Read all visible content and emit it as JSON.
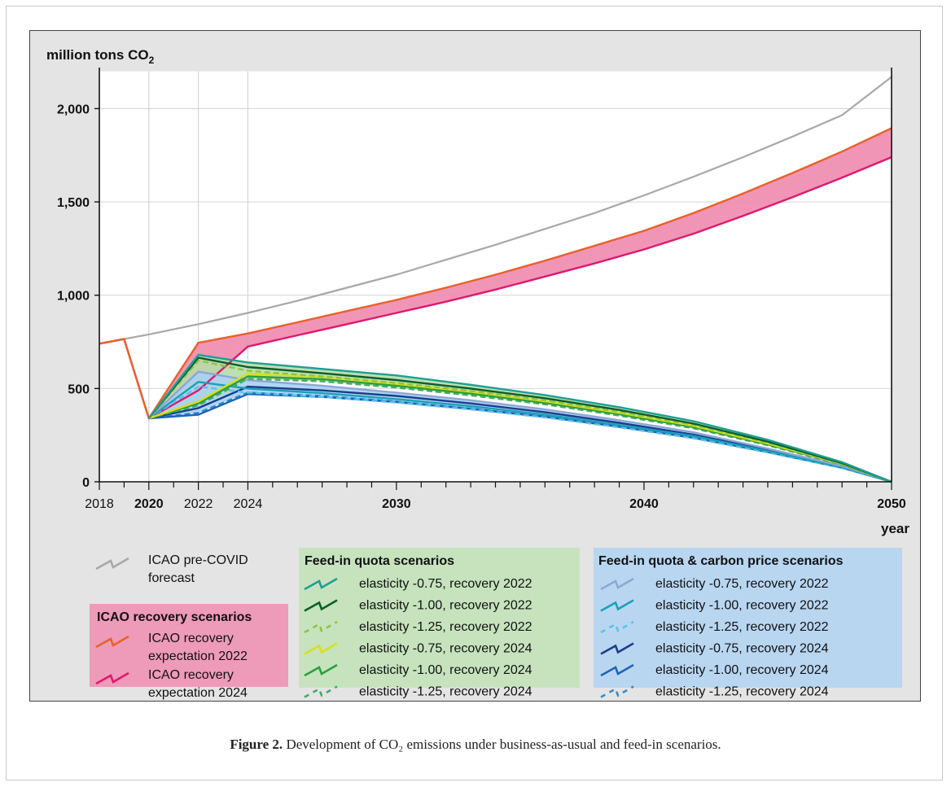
{
  "caption": {
    "label": "Figure 2.",
    "text": "Development of CO₂ emissions under business-as-usual and feed-in scenarios."
  },
  "chart_data": {
    "type": "line",
    "ylabel": "million tons CO",
    "ylabel_sub": "2",
    "xlabel": "year",
    "xlim": [
      2018,
      2050
    ],
    "ylim": [
      0,
      2200
    ],
    "grid": true,
    "y_ticks": [
      0,
      500,
      1000,
      1500,
      2000
    ],
    "y_tick_labels": [
      "0",
      "500",
      "1,000",
      "1,500",
      "2,000"
    ],
    "x_ticks": [
      2018,
      2020,
      2022,
      2024,
      2030,
      2040,
      2050
    ],
    "x_tick_labels": [
      "2018",
      "2020",
      "2022",
      "2024",
      "2030",
      "2040",
      "2050"
    ],
    "x_tick_bold": [
      2020,
      2030,
      2040,
      2050
    ],
    "series": [
      {
        "key": "precovid",
        "name": "ICAO pre-COVID forecast",
        "color": "#a8a8a8",
        "x": [
          2018,
          2019,
          2020,
          2022,
          2024,
          2026,
          2028,
          2030,
          2032,
          2034,
          2036,
          2038,
          2040,
          2042,
          2044,
          2046,
          2048,
          2050
        ],
        "y": [
          740,
          765,
          790,
          845,
          905,
          970,
          1040,
          1110,
          1190,
          1270,
          1355,
          1440,
          1535,
          1635,
          1740,
          1850,
          1965,
          2170
        ]
      },
      {
        "key": "icao2022",
        "name": "ICAO recovery expectation 2022",
        "color": "#e8612a",
        "x": [
          2018,
          2019,
          2020,
          2022,
          2024,
          2026,
          2028,
          2030,
          2032,
          2034,
          2036,
          2038,
          2040,
          2042,
          2044,
          2046,
          2048,
          2050
        ],
        "y": [
          740,
          765,
          340,
          745,
          795,
          855,
          915,
          975,
          1040,
          1110,
          1185,
          1265,
          1345,
          1440,
          1545,
          1655,
          1770,
          1895
        ]
      },
      {
        "key": "icao2024",
        "name": "ICAO recovery expectation 2024",
        "color": "#e0186f",
        "x": [
          2018,
          2019,
          2020,
          2022,
          2024,
          2026,
          2028,
          2030,
          2032,
          2034,
          2036,
          2038,
          2040,
          2042,
          2044,
          2046,
          2048,
          2050
        ],
        "y": [
          740,
          765,
          340,
          490,
          725,
          785,
          845,
          905,
          965,
          1030,
          1100,
          1170,
          1245,
          1330,
          1425,
          1525,
          1630,
          1740
        ]
      },
      {
        "key": "fq_075_22",
        "name": "elasticity -0.75, recovery 2022",
        "color": "#1f9e93",
        "x": [
          2020,
          2022,
          2024,
          2027,
          2030,
          2033,
          2036,
          2039,
          2042,
          2045,
          2048,
          2050
        ],
        "y": [
          340,
          680,
          640,
          605,
          570,
          520,
          465,
          400,
          325,
          225,
          105,
          0
        ]
      },
      {
        "key": "fq_100_22",
        "name": "elasticity -1.00, recovery 2022",
        "color": "#0b5e2a",
        "x": [
          2020,
          2022,
          2024,
          2027,
          2030,
          2033,
          2036,
          2039,
          2042,
          2045,
          2048,
          2050
        ],
        "y": [
          340,
          665,
          615,
          582,
          545,
          500,
          448,
          385,
          312,
          215,
          100,
          0
        ]
      },
      {
        "key": "fq_125_22",
        "name": "elasticity -1.25, recovery 2022",
        "color": "#8cc540",
        "dash": true,
        "x": [
          2020,
          2022,
          2024,
          2027,
          2030,
          2033,
          2036,
          2039,
          2042,
          2045,
          2048,
          2050
        ],
        "y": [
          340,
          650,
          595,
          565,
          530,
          487,
          437,
          375,
          305,
          210,
          98,
          0
        ]
      },
      {
        "key": "fq_075_24",
        "name": "elasticity -0.75, recovery 2024",
        "color": "#d9de1f",
        "x": [
          2020,
          2022,
          2024,
          2027,
          2030,
          2033,
          2036,
          2039,
          2042,
          2045,
          2048,
          2050
        ],
        "y": [
          340,
          430,
          580,
          562,
          525,
          483,
          432,
          370,
          300,
          205,
          96,
          0
        ]
      },
      {
        "key": "fq_100_24",
        "name": "elasticity -1.00, recovery 2024",
        "color": "#2e9e3c",
        "x": [
          2020,
          2022,
          2024,
          2027,
          2030,
          2033,
          2036,
          2039,
          2042,
          2045,
          2048,
          2050
        ],
        "y": [
          340,
          420,
          565,
          550,
          515,
          473,
          423,
          362,
          293,
          200,
          94,
          0
        ]
      },
      {
        "key": "fq_125_24",
        "name": "elasticity -1.25, recovery 2024",
        "color": "#3fae62",
        "dash": true,
        "x": [
          2020,
          2022,
          2024,
          2027,
          2030,
          2033,
          2036,
          2039,
          2042,
          2045,
          2048,
          2050
        ],
        "y": [
          340,
          410,
          552,
          538,
          505,
          463,
          415,
          355,
          287,
          196,
          92,
          0
        ]
      },
      {
        "key": "cp_075_22",
        "name": "elasticity -0.75, recovery 2022",
        "color": "#8ea6d6",
        "x": [
          2020,
          2022,
          2024,
          2027,
          2030,
          2033,
          2036,
          2039,
          2042,
          2045,
          2048,
          2050
        ],
        "y": [
          340,
          590,
          545,
          515,
          478,
          437,
          388,
          330,
          265,
          178,
          84,
          0
        ]
      },
      {
        "key": "cp_100_22",
        "name": "elasticity -1.00, recovery 2022",
        "color": "#1aa0b8",
        "x": [
          2020,
          2022,
          2024,
          2027,
          2030,
          2033,
          2036,
          2039,
          2042,
          2045,
          2048,
          2050
        ],
        "y": [
          340,
          535,
          500,
          475,
          443,
          405,
          360,
          305,
          245,
          165,
          78,
          0
        ]
      },
      {
        "key": "cp_125_22",
        "name": "elasticity -1.25, recovery 2022",
        "color": "#56c3ea",
        "dash": true,
        "x": [
          2020,
          2022,
          2024,
          2027,
          2030,
          2033,
          2036,
          2039,
          2042,
          2045,
          2048,
          2050
        ],
        "y": [
          340,
          510,
          478,
          455,
          425,
          388,
          345,
          292,
          233,
          157,
          74,
          0
        ]
      },
      {
        "key": "cp_075_24",
        "name": "elasticity -0.75, recovery 2024",
        "color": "#1a3d8f",
        "x": [
          2020,
          2022,
          2024,
          2027,
          2030,
          2033,
          2036,
          2039,
          2042,
          2045,
          2048,
          2050
        ],
        "y": [
          340,
          395,
          510,
          490,
          460,
          420,
          373,
          316,
          253,
          170,
          80,
          0
        ]
      },
      {
        "key": "cp_100_24",
        "name": "elasticity -1.00, recovery 2024",
        "color": "#1d64b8",
        "x": [
          2020,
          2022,
          2024,
          2027,
          2030,
          2033,
          2036,
          2039,
          2042,
          2045,
          2048,
          2050
        ],
        "y": [
          340,
          360,
          470,
          455,
          427,
          391,
          348,
          295,
          236,
          159,
          75,
          0
        ]
      },
      {
        "key": "cp_125_24",
        "name": "elasticity -1.25, recovery 2024",
        "color": "#2a8fd4",
        "dash": true,
        "x": [
          2020,
          2022,
          2024,
          2027,
          2030,
          2033,
          2036,
          2039,
          2042,
          2045,
          2048,
          2050
        ],
        "y": [
          340,
          370,
          478,
          460,
          430,
          393,
          350,
          297,
          238,
          160,
          76,
          0
        ]
      }
    ],
    "bands": [
      {
        "key": "icao-band",
        "upper": "icao2022",
        "lower": "icao2024",
        "color": "#ef8aae"
      },
      {
        "key": "fq-band",
        "upper": "fq_075_22",
        "lower": "fq_125_24",
        "color": "#b6dca8"
      },
      {
        "key": "cp-band",
        "upper": "cp_075_22",
        "lower": "cp_125_24",
        "color": "#a9d2f0"
      }
    ]
  },
  "legend": {
    "precovid": {
      "line1": "ICAO pre-COVID",
      "line2": "forecast"
    },
    "icao_group": {
      "title": "ICAO recovery scenarios",
      "bg": "#ee9ab9",
      "items": [
        {
          "series": "icao2022",
          "line1": "ICAO recovery",
          "line2": "expectation 2022"
        },
        {
          "series": "icao2024",
          "line1": "ICAO recovery",
          "line2": "expectation 2024"
        }
      ]
    },
    "fq_group": {
      "title": "Feed-in quota scenarios",
      "bg": "#c6e3bd",
      "items": [
        {
          "series": "fq_075_22",
          "label": "elasticity -0.75,  recovery 2022"
        },
        {
          "series": "fq_100_22",
          "label": "elasticity -1.00,  recovery 2022"
        },
        {
          "series": "fq_125_22",
          "label": "elasticity -1.25,  recovery 2022"
        },
        {
          "series": "fq_075_24",
          "label": "elasticity -0.75,  recovery 2024"
        },
        {
          "series": "fq_100_24",
          "label": "elasticity -1.00,  recovery 2024"
        },
        {
          "series": "fq_125_24",
          "label": "elasticity -1.25,  recovery 2024"
        }
      ]
    },
    "cp_group": {
      "title": "Feed-in quota & carbon price scenarios",
      "bg": "#b9d6f1",
      "items": [
        {
          "series": "cp_075_22",
          "label": "elasticity -0.75,  recovery 2022"
        },
        {
          "series": "cp_100_22",
          "label": "elasticity -1.00,  recovery 2022"
        },
        {
          "series": "cp_125_22",
          "label": "elasticity -1.25,  recovery 2022"
        },
        {
          "series": "cp_075_24",
          "label": "elasticity -0.75,  recovery 2024"
        },
        {
          "series": "cp_100_24",
          "label": "elasticity -1.00,  recovery 2024"
        },
        {
          "series": "cp_125_24",
          "label": "elasticity -1.25,  recovery 2024"
        }
      ]
    }
  }
}
